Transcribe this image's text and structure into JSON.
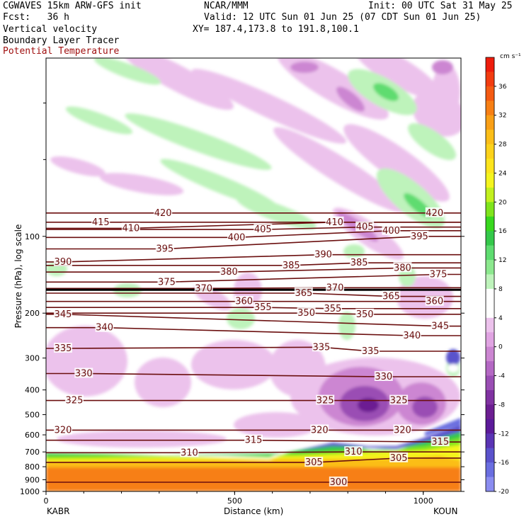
{
  "header": {
    "model": "CGWAVES 15km ARW-GFS init",
    "center": "NCAR/MMM",
    "init": "Init: 00 UTC Sat 31 May 25",
    "fcst": "Fcst:   36 h",
    "valid": "Valid: 12 UTC Sun 01 Jun 25 (07 CDT Sun 01 Jun 25)",
    "field1": "Vertical velocity",
    "xy": "XY= 187.4,173.8 to 191.8,100.1",
    "field2": "Boundary Layer Tracer",
    "field3": "Potential Temperature",
    "field3_color": "#a01010"
  },
  "chart_data": {
    "type": "heatmap",
    "xlabel": "Distance (km)",
    "ylabel": "Pressure (hPa), log scale",
    "x_ticks": [
      0,
      500,
      1000
    ],
    "x_range": [
      0,
      1100
    ],
    "y_ticks": [
      100,
      200,
      300,
      400,
      500,
      600,
      700,
      800,
      900,
      1000
    ],
    "y_scale": "log",
    "y_range_hpa": [
      1000,
      20
    ],
    "x_endpoints": [
      "KABR",
      "KOUN"
    ],
    "colorbar": {
      "unit": "cm s⁻¹",
      "labels": [
        36,
        32,
        28,
        24,
        20,
        16,
        12,
        8,
        4,
        0,
        -4,
        -8,
        -12,
        -16,
        -20
      ],
      "colors": [
        "#ee1c0c",
        "#f23c10",
        "#f45a12",
        "#f77f14",
        "#f99f16",
        "#fbbe18",
        "#fcd21a",
        "#fde41c",
        "#f4f41e",
        "#c2f01e",
        "#7fe41c",
        "#38d81e",
        "#34c84a",
        "#5edc70",
        "#8ce88e",
        "#bef3bb",
        "#ffffff",
        "#ffffff",
        "#ecc2ec",
        "#e0a4e2",
        "#cc86d2",
        "#b468c4",
        "#9a4eb4",
        "#8032a2",
        "#6c1e92",
        "#5c1a9a",
        "#5a34b4",
        "#5a52cc",
        "#6a6ee0",
        "#8a8cf0"
      ]
    },
    "theta_labels": [
      {
        "value": 420,
        "x": 310,
        "p": 81
      },
      {
        "value": 420,
        "x": 1030,
        "p": 81
      },
      {
        "value": 415,
        "x": 145,
        "p": 88
      },
      {
        "value": 410,
        "x": 225,
        "p": 93
      },
      {
        "value": 410,
        "x": 765,
        "p": 88
      },
      {
        "value": 405,
        "x": 575,
        "p": 94
      },
      {
        "value": 405,
        "x": 845,
        "p": 92
      },
      {
        "value": 400,
        "x": 505,
        "p": 101
      },
      {
        "value": 400,
        "x": 915,
        "p": 95
      },
      {
        "value": 395,
        "x": 315,
        "p": 112
      },
      {
        "value": 395,
        "x": 990,
        "p": 100
      },
      {
        "value": 390,
        "x": 45,
        "p": 126
      },
      {
        "value": 390,
        "x": 735,
        "p": 118
      },
      {
        "value": 385,
        "x": 650,
        "p": 130
      },
      {
        "value": 385,
        "x": 830,
        "p": 127
      },
      {
        "value": 380,
        "x": 485,
        "p": 138
      },
      {
        "value": 380,
        "x": 945,
        "p": 133
      },
      {
        "value": 375,
        "x": 320,
        "p": 151
      },
      {
        "value": 375,
        "x": 1040,
        "p": 141
      },
      {
        "value": 370,
        "x": 418,
        "p": 160
      },
      {
        "value": 370,
        "x": 766,
        "p": 159
      },
      {
        "value": 365,
        "x": 683,
        "p": 167
      },
      {
        "value": 365,
        "x": 915,
        "p": 172
      },
      {
        "value": 360,
        "x": 525,
        "p": 180
      },
      {
        "value": 360,
        "x": 1030,
        "p": 180
      },
      {
        "value": 355,
        "x": 575,
        "p": 190
      },
      {
        "value": 355,
        "x": 760,
        "p": 192
      },
      {
        "value": 350,
        "x": 690,
        "p": 200
      },
      {
        "value": 350,
        "x": 845,
        "p": 202
      },
      {
        "value": 345,
        "x": 45,
        "p": 202
      },
      {
        "value": 345,
        "x": 1045,
        "p": 225
      },
      {
        "value": 340,
        "x": 155,
        "p": 228
      },
      {
        "value": 340,
        "x": 970,
        "p": 245
      },
      {
        "value": 335,
        "x": 45,
        "p": 275
      },
      {
        "value": 335,
        "x": 730,
        "p": 272
      },
      {
        "value": 335,
        "x": 860,
        "p": 282
      },
      {
        "value": 330,
        "x": 100,
        "p": 345
      },
      {
        "value": 330,
        "x": 895,
        "p": 355
      },
      {
        "value": 325,
        "x": 75,
        "p": 440
      },
      {
        "value": 325,
        "x": 740,
        "p": 440
      },
      {
        "value": 325,
        "x": 935,
        "p": 440
      },
      {
        "value": 320,
        "x": 45,
        "p": 575
      },
      {
        "value": 320,
        "x": 725,
        "p": 575
      },
      {
        "value": 320,
        "x": 945,
        "p": 575
      },
      {
        "value": 315,
        "x": 550,
        "p": 630
      },
      {
        "value": 315,
        "x": 1045,
        "p": 640
      },
      {
        "value": 310,
        "x": 380,
        "p": 705
      },
      {
        "value": 310,
        "x": 815,
        "p": 700
      },
      {
        "value": 305,
        "x": 710,
        "p": 770
      },
      {
        "value": 305,
        "x": 935,
        "p": 740
      },
      {
        "value": 300,
        "x": 775,
        "p": 920
      }
    ]
  }
}
